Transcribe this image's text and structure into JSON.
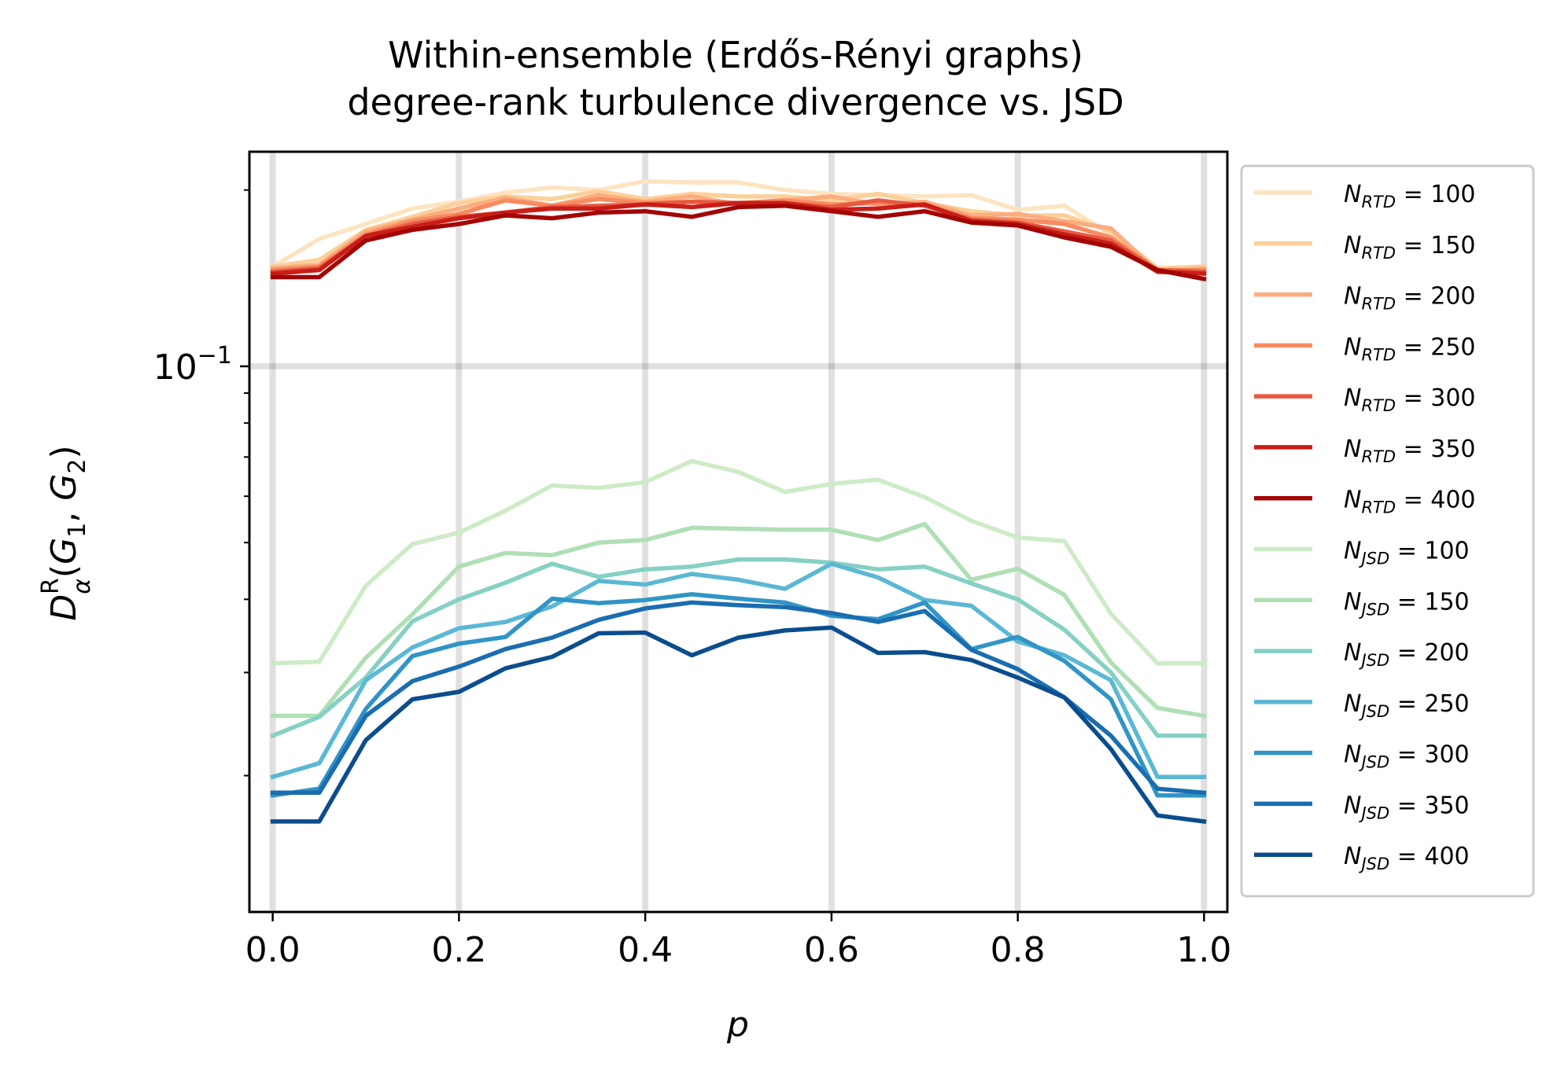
{
  "chart_data": {
    "type": "line",
    "title": "Within-ensemble (Erdős-Rényi graphs)",
    "subtitle": "degree-rank turbulence divergence vs. JSD",
    "xlabel": "p",
    "ylabel": "D_α^R(G_1, G_2)",
    "xlim": [
      -0.025,
      1.025
    ],
    "ylim": [
      0.0117,
      0.2325
    ],
    "yscale": "log",
    "grid": true,
    "legend_position": "outside-right",
    "x_ticks": [
      "0.0",
      "0.2",
      "0.4",
      "0.6",
      "0.8",
      "1.0"
    ],
    "y_ticks": [
      {
        "value": 0.1,
        "base": "10",
        "exp": "−1"
      }
    ],
    "x": [
      0,
      0.05,
      0.1,
      0.15,
      0.2,
      0.25,
      0.3,
      0.35,
      0.4,
      0.45,
      0.5,
      0.55,
      0.6,
      0.65,
      0.7,
      0.75,
      0.8,
      0.85,
      0.9,
      0.95,
      1.0
    ],
    "series": [
      {
        "name": "N_RTD = 100",
        "sub": "RTD",
        "num": "100",
        "color": "#fde4c1",
        "values": [
          0.148,
          0.165,
          0.175,
          0.186,
          0.191,
          0.198,
          0.202,
          0.2,
          0.207,
          0.206,
          0.206,
          0.2,
          0.197,
          0.196,
          0.195,
          0.196,
          0.185,
          0.188,
          0.168,
          0.146,
          0.146
        ]
      },
      {
        "name": "N_RTD = 150",
        "sub": "RTD",
        "num": "150",
        "color": "#fcd099",
        "values": [
          0.148,
          0.152,
          0.171,
          0.18,
          0.19,
          0.195,
          0.193,
          0.199,
          0.193,
          0.197,
          0.195,
          0.195,
          0.192,
          0.197,
          0.19,
          0.184,
          0.181,
          0.181,
          0.17,
          0.147,
          0.148
        ]
      },
      {
        "name": "N_RTD = 200",
        "sub": "RTD",
        "num": "200",
        "color": "#fbad7f",
        "values": [
          0.147,
          0.149,
          0.17,
          0.178,
          0.186,
          0.194,
          0.188,
          0.196,
          0.191,
          0.195,
          0.189,
          0.192,
          0.195,
          0.189,
          0.191,
          0.181,
          0.182,
          0.177,
          0.172,
          0.145,
          0.147
        ]
      },
      {
        "name": "N_RTD = 250",
        "sub": "RTD",
        "num": "250",
        "color": "#f78b62",
        "values": [
          0.146,
          0.148,
          0.168,
          0.177,
          0.182,
          0.192,
          0.188,
          0.193,
          0.19,
          0.191,
          0.19,
          0.192,
          0.189,
          0.19,
          0.189,
          0.179,
          0.178,
          0.175,
          0.166,
          0.146,
          0.146
        ]
      },
      {
        "name": "N_RTD = 300",
        "sub": "RTD",
        "num": "300",
        "color": "#e75a42",
        "values": [
          0.145,
          0.147,
          0.167,
          0.175,
          0.18,
          0.183,
          0.187,
          0.188,
          0.189,
          0.191,
          0.19,
          0.19,
          0.187,
          0.192,
          0.188,
          0.178,
          0.176,
          0.17,
          0.164,
          0.146,
          0.145
        ]
      },
      {
        "name": "N_RTD = 350",
        "sub": "RTD",
        "num": "350",
        "color": "#c81e17",
        "values": [
          0.144,
          0.146,
          0.167,
          0.173,
          0.179,
          0.183,
          0.186,
          0.186,
          0.189,
          0.187,
          0.19,
          0.19,
          0.185,
          0.186,
          0.189,
          0.177,
          0.175,
          0.168,
          0.162,
          0.145,
          0.144
        ]
      },
      {
        "name": "N_RTD = 400",
        "sub": "RTD",
        "num": "400",
        "color": "#a30404",
        "values": [
          0.142,
          0.142,
          0.164,
          0.171,
          0.175,
          0.181,
          0.179,
          0.183,
          0.184,
          0.18,
          0.187,
          0.188,
          0.184,
          0.18,
          0.184,
          0.176,
          0.174,
          0.166,
          0.16,
          0.146,
          0.141
        ]
      },
      {
        "name": "N_JSD = 100",
        "sub": "JSD",
        "num": "100",
        "color": "#cdebc7",
        "values": [
          0.0311,
          0.0313,
          0.0422,
          0.0497,
          0.052,
          0.0567,
          0.0626,
          0.062,
          0.0634,
          0.0689,
          0.066,
          0.061,
          0.063,
          0.064,
          0.0598,
          0.0545,
          0.051,
          0.0503,
          0.0378,
          0.0311,
          0.0311
        ]
      },
      {
        "name": "N_JSD = 150",
        "sub": "JSD",
        "num": "150",
        "color": "#b0dfb6",
        "values": [
          0.0253,
          0.0253,
          0.0318,
          0.0377,
          0.0455,
          0.048,
          0.0476,
          0.05,
          0.0505,
          0.053,
          0.0528,
          0.0526,
          0.0526,
          0.0505,
          0.0538,
          0.0432,
          0.0451,
          0.0407,
          0.0312,
          0.0261,
          0.0253
        ]
      },
      {
        "name": "N_JSD = 200",
        "sub": "JSD",
        "num": "200",
        "color": "#86d0c4",
        "values": [
          0.0234,
          0.0252,
          0.0294,
          0.0367,
          0.04,
          0.0427,
          0.046,
          0.0437,
          0.045,
          0.0455,
          0.0468,
          0.0468,
          0.0462,
          0.045,
          0.0455,
          0.0426,
          0.04,
          0.0355,
          0.03,
          0.0234,
          0.0234
        ]
      },
      {
        "name": "N_JSD = 250",
        "sub": "JSD",
        "num": "250",
        "color": "#5bb8d4",
        "values": [
          0.0199,
          0.021,
          0.0291,
          0.0331,
          0.0357,
          0.0366,
          0.0389,
          0.043,
          0.0424,
          0.0442,
          0.0432,
          0.0417,
          0.046,
          0.0436,
          0.0399,
          0.039,
          0.0339,
          0.0321,
          0.0291,
          0.0199,
          0.0199
        ]
      },
      {
        "name": "N_JSD = 300",
        "sub": "JSD",
        "num": "300",
        "color": "#3194c6",
        "values": [
          0.0185,
          0.019,
          0.026,
          0.032,
          0.0336,
          0.0345,
          0.0401,
          0.0394,
          0.0399,
          0.0408,
          0.0401,
          0.0395,
          0.0375,
          0.037,
          0.0395,
          0.0329,
          0.0345,
          0.0314,
          0.027,
          0.0185,
          0.0185
        ]
      },
      {
        "name": "N_JSD = 350",
        "sub": "JSD",
        "num": "350",
        "color": "#1a6db0",
        "values": [
          0.0187,
          0.0187,
          0.0253,
          0.029,
          0.0307,
          0.0329,
          0.0344,
          0.0369,
          0.0386,
          0.0395,
          0.0391,
          0.0388,
          0.0379,
          0.0366,
          0.0382,
          0.0328,
          0.0304,
          0.0272,
          0.0234,
          0.019,
          0.0187
        ]
      },
      {
        "name": "N_JSD = 400",
        "sub": "JSD",
        "num": "400",
        "color": "#0b4d8d",
        "values": [
          0.0167,
          0.0167,
          0.023,
          0.027,
          0.0278,
          0.0305,
          0.0319,
          0.035,
          0.0351,
          0.0321,
          0.0344,
          0.0354,
          0.0358,
          0.0324,
          0.0325,
          0.0315,
          0.0294,
          0.0272,
          0.0222,
          0.0171,
          0.0167
        ]
      }
    ]
  }
}
